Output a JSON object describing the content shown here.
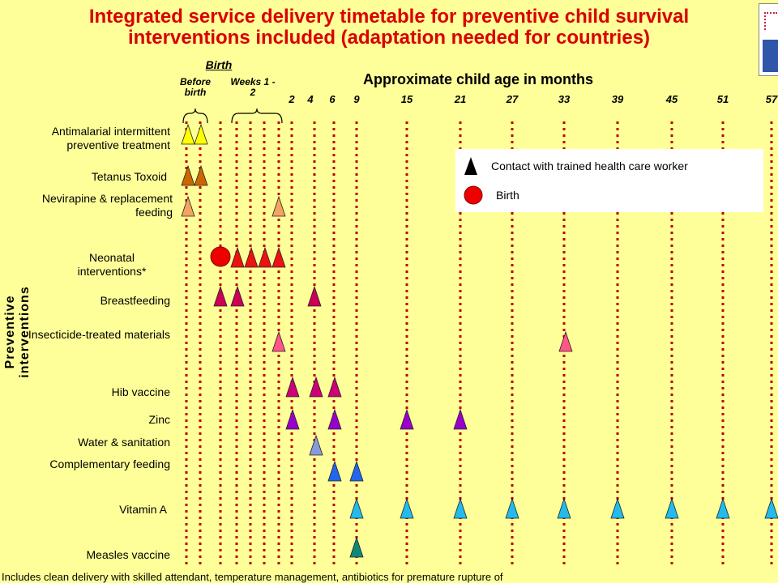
{
  "title": "Integrated service delivery timetable for preventive child survival interventions included (adaptation needed for countries)",
  "side_label": "Preventive interventions",
  "header": {
    "birth": "Birth",
    "before_birth": "Before birth",
    "weeks": "Weeks 1 - 2",
    "age_title": "Approximate child age in months",
    "ticks": [
      "2",
      "4",
      "6",
      "9",
      "15",
      "21",
      "27",
      "33",
      "39",
      "45",
      "51",
      "57"
    ]
  },
  "rows": [
    {
      "label": "Antimalarial intermittent preventive treatment",
      "color": "#ffff00"
    },
    {
      "label": "Tetanus Toxoid",
      "color": "#cc6600"
    },
    {
      "label": "Nevirapine & replacement feeding",
      "color": "#f4a460"
    },
    {
      "label": "Neonatal interventions*",
      "color": "#ee1111"
    },
    {
      "label": "Breastfeeding",
      "color": "#cc0055"
    },
    {
      "label": "Insecticide-treated materials",
      "color": "#ff5588"
    },
    {
      "label": "Hib vaccine",
      "color": "#cc0077"
    },
    {
      "label": "Zinc",
      "color": "#9900cc"
    },
    {
      "label": "Water & sanitation",
      "color": "#8899dd"
    },
    {
      "label": "Complementary feeding",
      "color": "#2266ee"
    },
    {
      "label": "Vitamin A",
      "color": "#22bbee"
    },
    {
      "label": "Measles vaccine",
      "color": "#118877"
    }
  ],
  "legend": {
    "contact_label": "Contact with trained health care worker",
    "birth_label": "Birth"
  },
  "footnote": "Includes clean delivery with skilled attendant, temperature management, antibiotics for premature rupture of",
  "colors": {
    "background": "#ffff99",
    "title": "#d90000",
    "gridline": "#bb0000",
    "birth_marker": "#ee0000"
  }
}
